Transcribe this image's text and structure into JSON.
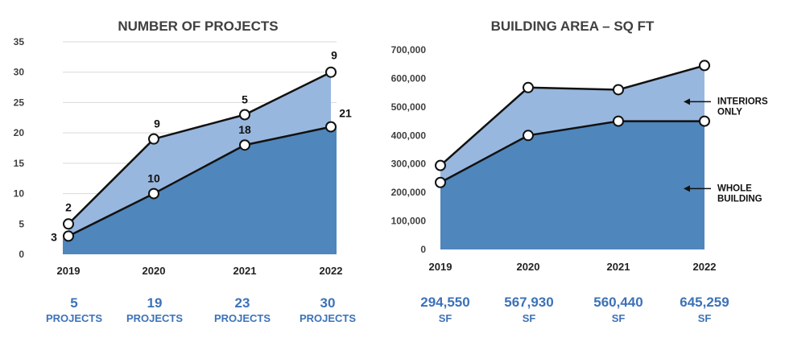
{
  "colors": {
    "dark_area": "#4f86bb",
    "light_area": "#98b7de",
    "line": "#111111",
    "summary": "#3c72b8"
  },
  "chart_data": [
    {
      "type": "area",
      "title": "NUMBER OF PROJECTS",
      "categories": [
        "2019",
        "2020",
        "2021",
        "2022"
      ],
      "ylim": [
        0,
        35
      ],
      "yticks": [
        0,
        5,
        10,
        15,
        20,
        25,
        30,
        35
      ],
      "ytick_labels": [
        "0",
        "5",
        "10",
        "15",
        "20",
        "25",
        "30",
        "35"
      ],
      "grid": true,
      "series": [
        {
          "values": [
            3,
            10,
            18,
            21
          ],
          "labels": [
            "3",
            "10",
            "18",
            "21"
          ]
        },
        {
          "values": [
            5,
            19,
            23,
            30
          ],
          "labels": [
            "2",
            "9",
            "5",
            "9"
          ]
        }
      ],
      "summary": [
        {
          "value": "5",
          "unit": "PROJECTS"
        },
        {
          "value": "19",
          "unit": "PROJECTS"
        },
        {
          "value": "23",
          "unit": "PROJECTS"
        },
        {
          "value": "30",
          "unit": "PROJECTS"
        }
      ]
    },
    {
      "type": "area",
      "title": "BUILDING AREA – SQ FT",
      "categories": [
        "2019",
        "2020",
        "2021",
        "2022"
      ],
      "ylim": [
        0,
        700000
      ],
      "yticks": [
        0,
        100000,
        200000,
        300000,
        400000,
        500000,
        600000,
        700000
      ],
      "ytick_labels": [
        "0",
        "100,000",
        "200,000",
        "300,000",
        "400,000",
        "500,000",
        "600,000",
        "700,000"
      ],
      "grid": false,
      "series": [
        {
          "name": "WHOLE BUILDING",
          "name_lines": [
            "WHOLE",
            "BUILDING"
          ],
          "values": [
            235000,
            400000,
            450000,
            450000
          ]
        },
        {
          "name": "INTERIORS ONLY",
          "name_lines": [
            "INTERIORS",
            "ONLY"
          ],
          "values": [
            294550,
            567930,
            560440,
            645259
          ]
        }
      ],
      "summary": [
        {
          "value": "294,550",
          "unit": "SF"
        },
        {
          "value": "567,930",
          "unit": "SF"
        },
        {
          "value": "560,440",
          "unit": "SF"
        },
        {
          "value": "645,259",
          "unit": "SF"
        }
      ]
    }
  ]
}
